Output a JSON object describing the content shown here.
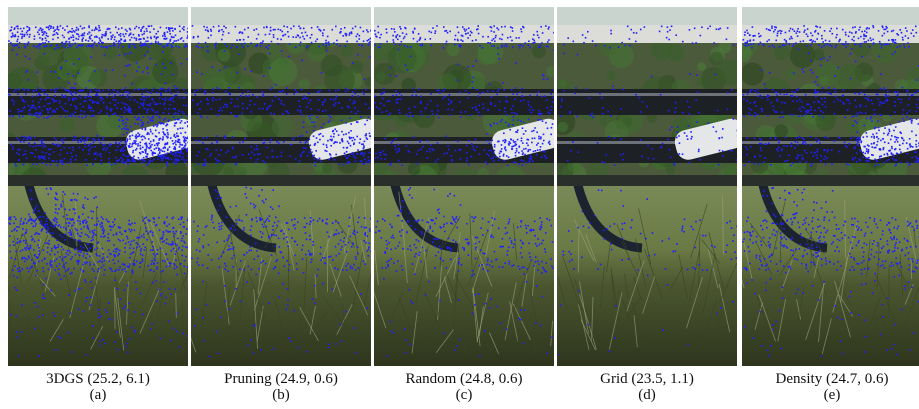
{
  "figure": {
    "panels": [
      {
        "name": "3DGS (25.2, 6.1)",
        "letter": "(a)",
        "point_density": 1.0,
        "point_color": "#1f1fff"
      },
      {
        "name": "Pruning (24.9, 0.6)",
        "letter": "(b)",
        "point_density": 0.45,
        "point_color": "#1f1fff"
      },
      {
        "name": "Random (24.8, 0.6)",
        "letter": "(c)",
        "point_density": 0.42,
        "point_color": "#1f1fff"
      },
      {
        "name": "Grid (23.5, 1.1)",
        "letter": "(d)",
        "point_density": 0.12,
        "point_color": "#1f1fff"
      },
      {
        "name": "Density (24.7, 0.6)",
        "letter": "(e)",
        "point_density": 0.55,
        "point_color": "#1f1fff"
      }
    ]
  }
}
